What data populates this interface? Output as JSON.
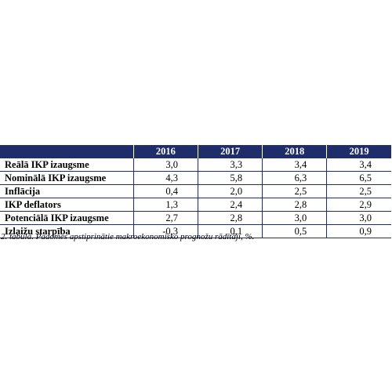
{
  "table": {
    "headers": [
      "",
      "2016",
      "2017",
      "2018",
      "2019"
    ],
    "rows": [
      {
        "label": "Reālā IKP izaugsme",
        "values": [
          "3,0",
          "3,3",
          "3,4",
          "3,4"
        ]
      },
      {
        "label": "Nominālā IKP izaugsme",
        "values": [
          "4,3",
          "5,8",
          "6,3",
          "6,5"
        ]
      },
      {
        "label": "Inflācija",
        "values": [
          "0,4",
          "2,0",
          "2,5",
          "2,5"
        ]
      },
      {
        "label": "IKP deflators",
        "values": [
          "1,3",
          "2,4",
          "2,8",
          "2,9"
        ]
      },
      {
        "label": "Potenciālā IKP izaugsme",
        "values": [
          "2,7",
          "2,8",
          "3,0",
          "3,0"
        ]
      },
      {
        "label": "Izlaižu starpība",
        "values": [
          "-0,3",
          "0,1",
          "0,5",
          "0,9"
        ]
      }
    ]
  },
  "caption": "2. tabula. Padomes apstiprinātie makroekonomisko prognožu rādītāji, %.",
  "colors": {
    "header_bg": "#1f2d6b",
    "header_text": "#ffffff",
    "rule": "#1f2d6b"
  }
}
